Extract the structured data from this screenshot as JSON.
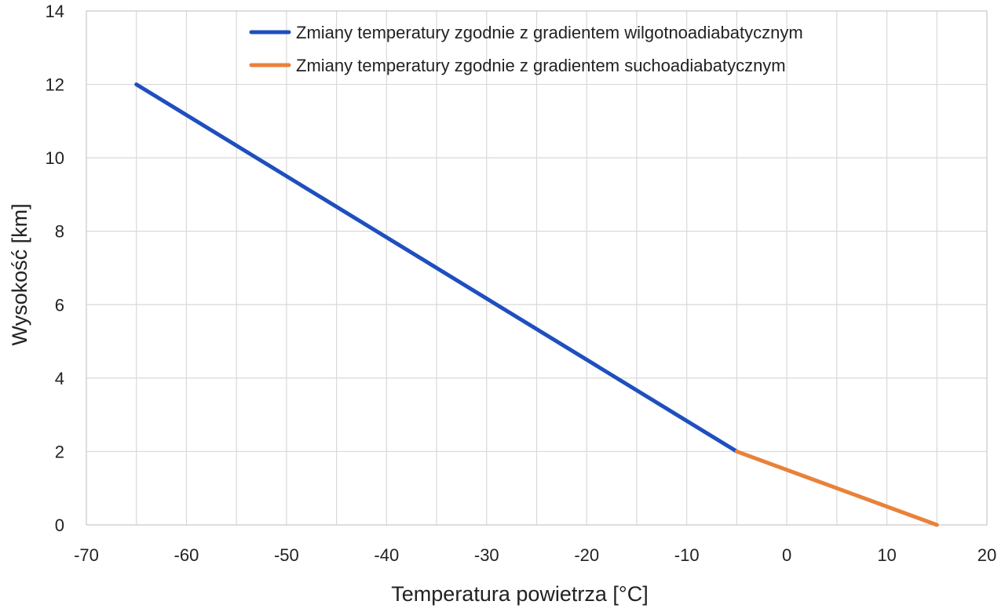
{
  "chart_data": {
    "type": "line",
    "xlabel": "Temperatura powietrza [°C]",
    "ylabel": "Wysokość [km]",
    "xlim": [
      -70,
      20
    ],
    "ylim": [
      0,
      14
    ],
    "x_ticks": [
      -70,
      -60,
      -50,
      -40,
      -30,
      -20,
      -10,
      0,
      10,
      20
    ],
    "y_ticks": [
      0,
      2,
      4,
      6,
      8,
      10,
      12,
      14
    ],
    "grid": true,
    "legend_position": "top-right",
    "series": [
      {
        "name": "Zmiany temperatury zgodnie z gradientem wilgotnoadiabatycznym",
        "color": "#1f4fbf",
        "points": [
          [
            -65,
            12
          ],
          [
            -5,
            2
          ]
        ]
      },
      {
        "name": "Zmiany temperatury zgodnie z gradientem suchoadiabatycznym",
        "color": "#e8823a",
        "points": [
          [
            -5,
            2
          ],
          [
            15,
            0
          ]
        ]
      }
    ]
  }
}
